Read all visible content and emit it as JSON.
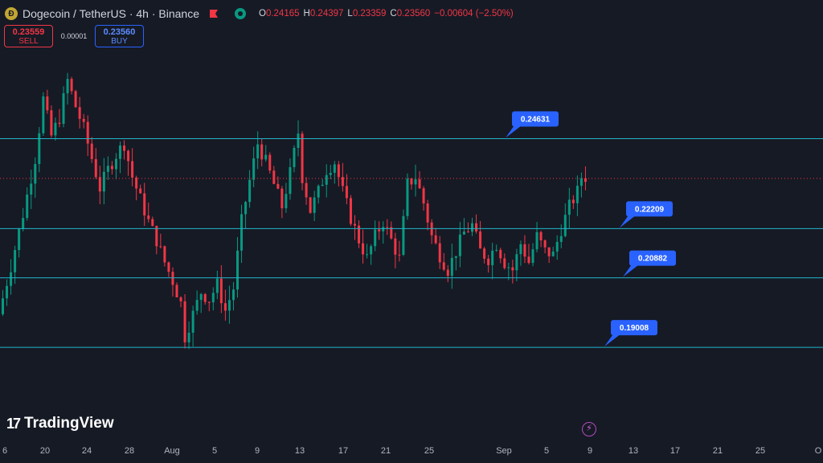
{
  "header": {
    "coin_icon": "dogecoin-icon",
    "title": "Dogecoin / TetherUS · 4h · Binance",
    "ohlc": [
      {
        "k": "O",
        "v": "0.24165"
      },
      {
        "k": "H",
        "v": "0.24397"
      },
      {
        "k": "L",
        "v": "0.23359"
      },
      {
        "k": "C",
        "v": "0.23560"
      },
      {
        "k": "",
        "v": "−0.00604 (−2.50%)"
      }
    ]
  },
  "trade": {
    "sell_price": "0.23559",
    "sell_label": "SELL",
    "spread": "0.00001",
    "buy_price": "0.23560",
    "buy_label": "BUY"
  },
  "logo": {
    "text": "TradingView"
  },
  "colors": {
    "up": "#089981",
    "down": "#f23645",
    "level": "#1fb5c9",
    "flag": "#2962ff"
  },
  "chart_data": {
    "type": "candlestick",
    "symbol": "Dogecoin / TetherUS",
    "interval": "4h",
    "exchange": "Binance",
    "x_ticks": [
      "6",
      "20",
      "24",
      "28",
      "Aug",
      "5",
      "9",
      "13",
      "17",
      "21",
      "25",
      "Sep",
      "5",
      "9",
      "13",
      "17",
      "21",
      "25",
      "O"
    ],
    "horizontal_levels": [
      0.24631,
      0.22209,
      0.20882,
      0.19008
    ],
    "last_price": 0.2356,
    "y_range": [
      0.165,
      0.275
    ],
    "ohlc_path": [
      [
        0,
        0.199
      ],
      [
        3,
        0.212
      ],
      [
        6,
        0.226
      ],
      [
        9,
        0.241
      ],
      [
        11,
        0.257
      ],
      [
        13,
        0.247
      ],
      [
        15,
        0.252
      ],
      [
        17,
        0.262
      ],
      [
        19,
        0.255
      ],
      [
        21,
        0.249
      ],
      [
        23,
        0.241
      ],
      [
        25,
        0.233
      ],
      [
        27,
        0.238
      ],
      [
        29,
        0.242
      ],
      [
        31,
        0.245
      ],
      [
        33,
        0.236
      ],
      [
        35,
        0.23
      ],
      [
        37,
        0.224
      ],
      [
        39,
        0.219
      ],
      [
        41,
        0.213
      ],
      [
        43,
        0.208
      ],
      [
        45,
        0.202
      ],
      [
        46,
        0.193
      ],
      [
        48,
        0.199
      ],
      [
        50,
        0.205
      ],
      [
        52,
        0.203
      ],
      [
        54,
        0.207
      ],
      [
        56,
        0.2
      ],
      [
        58,
        0.206
      ],
      [
        60,
        0.224
      ],
      [
        62,
        0.235
      ],
      [
        64,
        0.245
      ],
      [
        66,
        0.24
      ],
      [
        68,
        0.234
      ],
      [
        70,
        0.228
      ],
      [
        72,
        0.237
      ],
      [
        74,
        0.248
      ],
      [
        75,
        0.236
      ],
      [
        77,
        0.227
      ],
      [
        79,
        0.232
      ],
      [
        81,
        0.238
      ],
      [
        83,
        0.24
      ],
      [
        85,
        0.232
      ],
      [
        87,
        0.225
      ],
      [
        89,
        0.219
      ],
      [
        91,
        0.214
      ],
      [
        93,
        0.22
      ],
      [
        95,
        0.224
      ],
      [
        97,
        0.219
      ],
      [
        99,
        0.214
      ],
      [
        101,
        0.234
      ],
      [
        103,
        0.236
      ],
      [
        105,
        0.229
      ],
      [
        107,
        0.22
      ],
      [
        109,
        0.215
      ],
      [
        111,
        0.211
      ],
      [
        113,
        0.216
      ],
      [
        115,
        0.221
      ],
      [
        117,
        0.223
      ],
      [
        119,
        0.216
      ],
      [
        121,
        0.214
      ],
      [
        123,
        0.218
      ],
      [
        125,
        0.213
      ],
      [
        127,
        0.211
      ],
      [
        129,
        0.218
      ],
      [
        131,
        0.213
      ],
      [
        133,
        0.22
      ],
      [
        135,
        0.216
      ],
      [
        137,
        0.215
      ],
      [
        139,
        0.222
      ],
      [
        141,
        0.228
      ],
      [
        143,
        0.232
      ],
      [
        144,
        0.236
      ]
    ]
  }
}
